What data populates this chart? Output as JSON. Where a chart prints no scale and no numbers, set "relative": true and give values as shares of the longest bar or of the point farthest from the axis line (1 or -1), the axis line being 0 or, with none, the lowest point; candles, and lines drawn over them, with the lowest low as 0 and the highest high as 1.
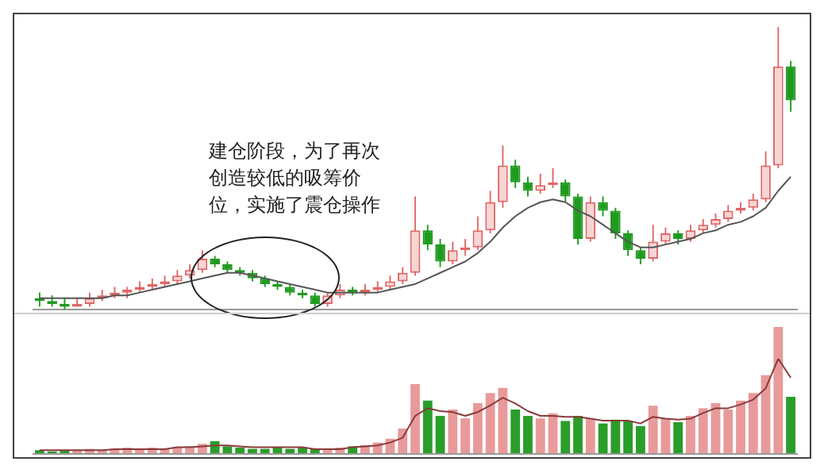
{
  "chart_data": [
    {
      "type": "candlestick",
      "relative": true,
      "legend": false,
      "categories": [
        null,
        null,
        null,
        null,
        null,
        null,
        null,
        null,
        null,
        null,
        null,
        null,
        null,
        null,
        null,
        null,
        null,
        null,
        null,
        null,
        null,
        null,
        null,
        null,
        null,
        null,
        null,
        null,
        null,
        null,
        null,
        null,
        null,
        null,
        null,
        null,
        null,
        null,
        null,
        null,
        null,
        null,
        null,
        null,
        null,
        null,
        null,
        null,
        null,
        null,
        null,
        null,
        null,
        null,
        null,
        null,
        null,
        null,
        null,
        null,
        null
      ],
      "ohlc": [
        [
          0.04,
          0.06,
          0.01,
          0.03
        ],
        [
          0.03,
          0.05,
          0.01,
          0.02
        ],
        [
          0.02,
          0.04,
          0.0,
          0.01
        ],
        [
          0.01,
          0.04,
          0.01,
          0.02
        ],
        [
          0.02,
          0.06,
          0.01,
          0.04
        ],
        [
          0.04,
          0.07,
          0.03,
          0.05
        ],
        [
          0.05,
          0.08,
          0.04,
          0.06
        ],
        [
          0.06,
          0.08,
          0.04,
          0.07
        ],
        [
          0.07,
          0.1,
          0.06,
          0.08
        ],
        [
          0.08,
          0.11,
          0.07,
          0.09
        ],
        [
          0.09,
          0.12,
          0.08,
          0.1
        ],
        [
          0.1,
          0.14,
          0.09,
          0.12
        ],
        [
          0.12,
          0.16,
          0.11,
          0.14
        ],
        [
          0.14,
          0.21,
          0.13,
          0.18
        ],
        [
          0.18,
          0.19,
          0.15,
          0.16
        ],
        [
          0.16,
          0.17,
          0.13,
          0.14
        ],
        [
          0.14,
          0.15,
          0.12,
          0.13
        ],
        [
          0.13,
          0.14,
          0.1,
          0.11
        ],
        [
          0.11,
          0.12,
          0.08,
          0.09
        ],
        [
          0.09,
          0.1,
          0.07,
          0.08
        ],
        [
          0.08,
          0.09,
          0.05,
          0.06
        ],
        [
          0.06,
          0.07,
          0.04,
          0.05
        ],
        [
          0.05,
          0.06,
          0.01,
          0.02
        ],
        [
          0.02,
          0.06,
          0.01,
          0.05
        ],
        [
          0.05,
          0.09,
          0.04,
          0.07
        ],
        [
          0.07,
          0.08,
          0.05,
          0.06
        ],
        [
          0.06,
          0.09,
          0.05,
          0.07
        ],
        [
          0.07,
          0.1,
          0.06,
          0.08
        ],
        [
          0.08,
          0.12,
          0.07,
          0.1
        ],
        [
          0.1,
          0.15,
          0.09,
          0.13
        ],
        [
          0.13,
          0.4,
          0.12,
          0.28
        ],
        [
          0.28,
          0.3,
          0.21,
          0.23
        ],
        [
          0.23,
          0.25,
          0.15,
          0.17
        ],
        [
          0.17,
          0.24,
          0.16,
          0.21
        ],
        [
          0.21,
          0.25,
          0.19,
          0.22
        ],
        [
          0.22,
          0.33,
          0.21,
          0.28
        ],
        [
          0.28,
          0.42,
          0.27,
          0.38
        ],
        [
          0.38,
          0.58,
          0.36,
          0.51
        ],
        [
          0.51,
          0.53,
          0.43,
          0.45
        ],
        [
          0.45,
          0.47,
          0.4,
          0.42
        ],
        [
          0.42,
          0.48,
          0.41,
          0.44
        ],
        [
          0.44,
          0.5,
          0.43,
          0.45
        ],
        [
          0.45,
          0.46,
          0.38,
          0.4
        ],
        [
          0.4,
          0.41,
          0.23,
          0.25
        ],
        [
          0.25,
          0.4,
          0.24,
          0.38
        ],
        [
          0.38,
          0.4,
          0.33,
          0.35
        ],
        [
          0.35,
          0.36,
          0.25,
          0.27
        ],
        [
          0.27,
          0.28,
          0.19,
          0.21
        ],
        [
          0.21,
          0.22,
          0.16,
          0.18
        ],
        [
          0.18,
          0.3,
          0.17,
          0.24
        ],
        [
          0.24,
          0.29,
          0.23,
          0.27
        ],
        [
          0.27,
          0.28,
          0.23,
          0.25
        ],
        [
          0.25,
          0.3,
          0.24,
          0.28
        ],
        [
          0.28,
          0.32,
          0.27,
          0.3
        ],
        [
          0.3,
          0.34,
          0.29,
          0.32
        ],
        [
          0.32,
          0.37,
          0.31,
          0.35
        ],
        [
          0.35,
          0.38,
          0.34,
          0.36
        ],
        [
          0.36,
          0.41,
          0.35,
          0.39
        ],
        [
          0.39,
          0.56,
          0.38,
          0.51
        ],
        [
          0.51,
          1.0,
          0.5,
          0.86
        ],
        [
          0.86,
          0.88,
          0.7,
          0.74
        ]
      ],
      "series": [
        {
          "type": "line",
          "color": "#555555",
          "values": [
            0.04,
            0.04,
            0.04,
            0.04,
            0.04,
            0.04,
            0.05,
            0.05,
            0.06,
            0.07,
            0.08,
            0.09,
            0.1,
            0.11,
            0.12,
            0.13,
            0.13,
            0.12,
            0.11,
            0.1,
            0.09,
            0.08,
            0.07,
            0.06,
            0.06,
            0.06,
            0.06,
            0.06,
            0.07,
            0.08,
            0.09,
            0.11,
            0.13,
            0.15,
            0.17,
            0.2,
            0.24,
            0.29,
            0.33,
            0.36,
            0.38,
            0.39,
            0.38,
            0.35,
            0.33,
            0.3,
            0.27,
            0.24,
            0.22,
            0.22,
            0.23,
            0.24,
            0.25,
            0.27,
            0.28,
            0.3,
            0.31,
            0.33,
            0.36,
            0.42,
            0.47
          ]
        }
      ],
      "annotations": [
        "建仓阶段，为了再次创造较低的吸筹价位，实施了震仓操作"
      ]
    },
    {
      "type": "bar",
      "relative": true,
      "legend": false,
      "categories": [
        null,
        null,
        null,
        null,
        null,
        null,
        null,
        null,
        null,
        null,
        null,
        null,
        null,
        null,
        null,
        null,
        null,
        null,
        null,
        null,
        null,
        null,
        null,
        null,
        null,
        null,
        null,
        null,
        null,
        null,
        null,
        null,
        null,
        null,
        null,
        null,
        null,
        null,
        null,
        null,
        null,
        null,
        null,
        null,
        null,
        null,
        null,
        null,
        null,
        null,
        null,
        null,
        null,
        null,
        null,
        null,
        null,
        null,
        null,
        null,
        null
      ],
      "series": [
        {
          "type": "bar",
          "values": [
            0.03,
            0.02,
            0.03,
            0.03,
            0.04,
            0.03,
            0.04,
            0.05,
            0.04,
            0.05,
            0.04,
            0.05,
            0.06,
            0.08,
            0.1,
            0.06,
            0.05,
            0.04,
            0.04,
            0.05,
            0.04,
            0.05,
            0.04,
            0.03,
            0.05,
            0.06,
            0.07,
            0.09,
            0.12,
            0.2,
            0.55,
            0.42,
            0.3,
            0.35,
            0.28,
            0.4,
            0.48,
            0.52,
            0.35,
            0.3,
            0.28,
            0.32,
            0.26,
            0.3,
            0.28,
            0.24,
            0.27,
            0.26,
            0.22,
            0.38,
            0.28,
            0.25,
            0.3,
            0.36,
            0.4,
            0.35,
            0.42,
            0.48,
            0.62,
            1.0,
            0.45
          ],
          "colors": [
            "#2a9d2a",
            "#2a9d2a",
            "#2a9d2a",
            "#e89a9a",
            "#e89a9a",
            "#e89a9a",
            "#e89a9a",
            "#e89a9a",
            "#e89a9a",
            "#e89a9a",
            "#e89a9a",
            "#e89a9a",
            "#e89a9a",
            "#e89a9a",
            "#2a9d2a",
            "#2a9d2a",
            "#2a9d2a",
            "#2a9d2a",
            "#2a9d2a",
            "#2a9d2a",
            "#2a9d2a",
            "#2a9d2a",
            "#2a9d2a",
            "#e89a9a",
            "#e89a9a",
            "#2a9d2a",
            "#e89a9a",
            "#e89a9a",
            "#e89a9a",
            "#e89a9a",
            "#e89a9a",
            "#2a9d2a",
            "#2a9d2a",
            "#e89a9a",
            "#e89a9a",
            "#e89a9a",
            "#e89a9a",
            "#e89a9a",
            "#2a9d2a",
            "#2a9d2a",
            "#e89a9a",
            "#e89a9a",
            "#2a9d2a",
            "#2a9d2a",
            "#e89a9a",
            "#2a9d2a",
            "#2a9d2a",
            "#2a9d2a",
            "#2a9d2a",
            "#e89a9a",
            "#e89a9a",
            "#2a9d2a",
            "#e89a9a",
            "#e89a9a",
            "#e89a9a",
            "#e89a9a",
            "#e89a9a",
            "#e89a9a",
            "#e89a9a",
            "#e89a9a",
            "#2a9d2a"
          ]
        }
      ]
    },
    {
      "type": "line",
      "relative": true,
      "legend": false,
      "categories": [
        null,
        null,
        null,
        null,
        null,
        null,
        null,
        null,
        null,
        null,
        null,
        null,
        null,
        null,
        null,
        null,
        null,
        null,
        null,
        null,
        null,
        null,
        null,
        null,
        null,
        null,
        null,
        null,
        null,
        null,
        null,
        null,
        null,
        null,
        null,
        null,
        null,
        null,
        null,
        null,
        null,
        null,
        null,
        null,
        null,
        null,
        null,
        null,
        null,
        null,
        null,
        null,
        null,
        null,
        null,
        null,
        null,
        null,
        null,
        null,
        null
      ],
      "series": [
        {
          "color": "#8b3a3a",
          "values": [
            0.04,
            0.04,
            0.04,
            0.04,
            0.04,
            0.04,
            0.05,
            0.05,
            0.05,
            0.05,
            0.05,
            0.07,
            0.07,
            0.08,
            0.09,
            0.09,
            0.08,
            0.07,
            0.07,
            0.07,
            0.07,
            0.07,
            0.05,
            0.05,
            0.05,
            0.07,
            0.08,
            0.09,
            0.12,
            0.17,
            0.4,
            0.48,
            0.45,
            0.44,
            0.4,
            0.44,
            0.51,
            0.59,
            0.53,
            0.45,
            0.4,
            0.4,
            0.39,
            0.39,
            0.37,
            0.35,
            0.35,
            0.35,
            0.32,
            0.39,
            0.37,
            0.36,
            0.37,
            0.43,
            0.48,
            0.48,
            0.52,
            0.57,
            0.69,
            1.0,
            0.8
          ]
        }
      ]
    }
  ]
}
